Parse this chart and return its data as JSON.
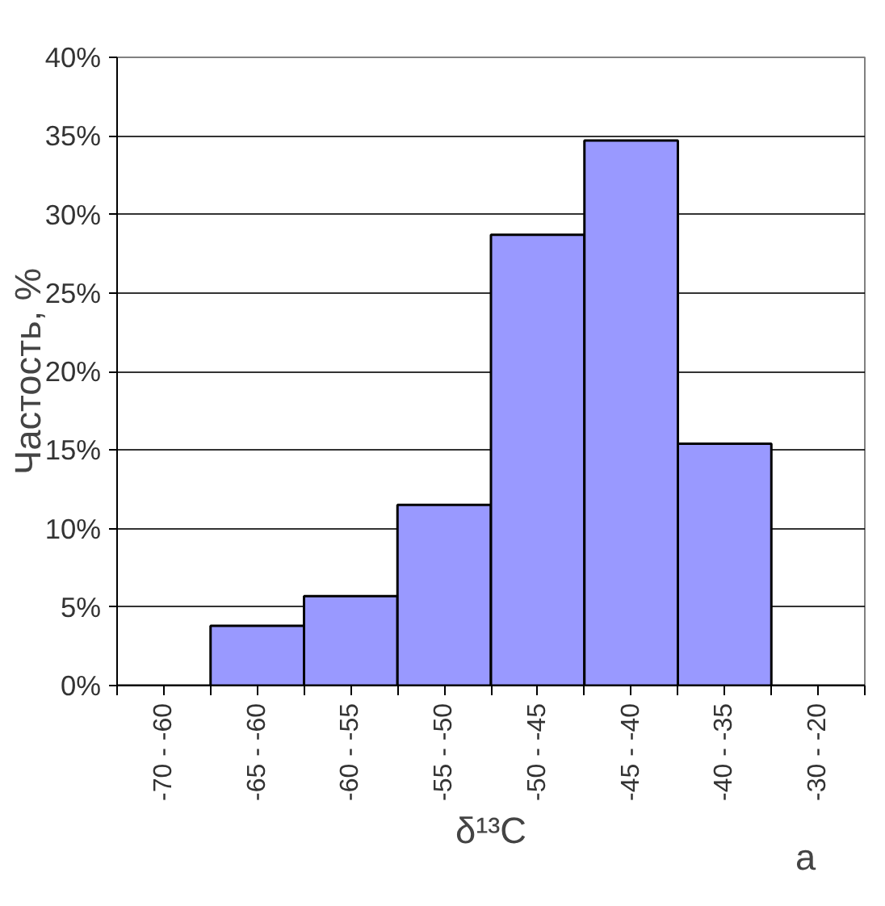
{
  "chart_data": {
    "type": "bar",
    "ylabel": "Частость, %",
    "xlabel": "δ¹³C",
    "annotations": [
      "a"
    ],
    "categories": [
      "-70 - -60",
      "-65 - -60",
      "-60 - -55",
      "-55 - -50",
      "-50 - -45",
      "-45 - -40",
      "-40 - -35",
      "-30 - -20"
    ],
    "values": [
      null,
      3.8,
      5.7,
      11.5,
      28.7,
      34.7,
      15.4,
      null
    ],
    "color": "#9999ff",
    "ylim": [
      0,
      40
    ],
    "yticks": [
      {
        "value": 0,
        "label": "0%"
      },
      {
        "value": 5,
        "label": "5%"
      },
      {
        "value": 10,
        "label": "10%"
      },
      {
        "value": 15,
        "label": "15%"
      },
      {
        "value": 20,
        "label": "20%"
      },
      {
        "value": 25,
        "label": "25%"
      },
      {
        "value": 30,
        "label": "30%"
      },
      {
        "value": 35,
        "label": "35%"
      },
      {
        "value": 40,
        "label": "40%"
      }
    ],
    "grid": "y"
  }
}
